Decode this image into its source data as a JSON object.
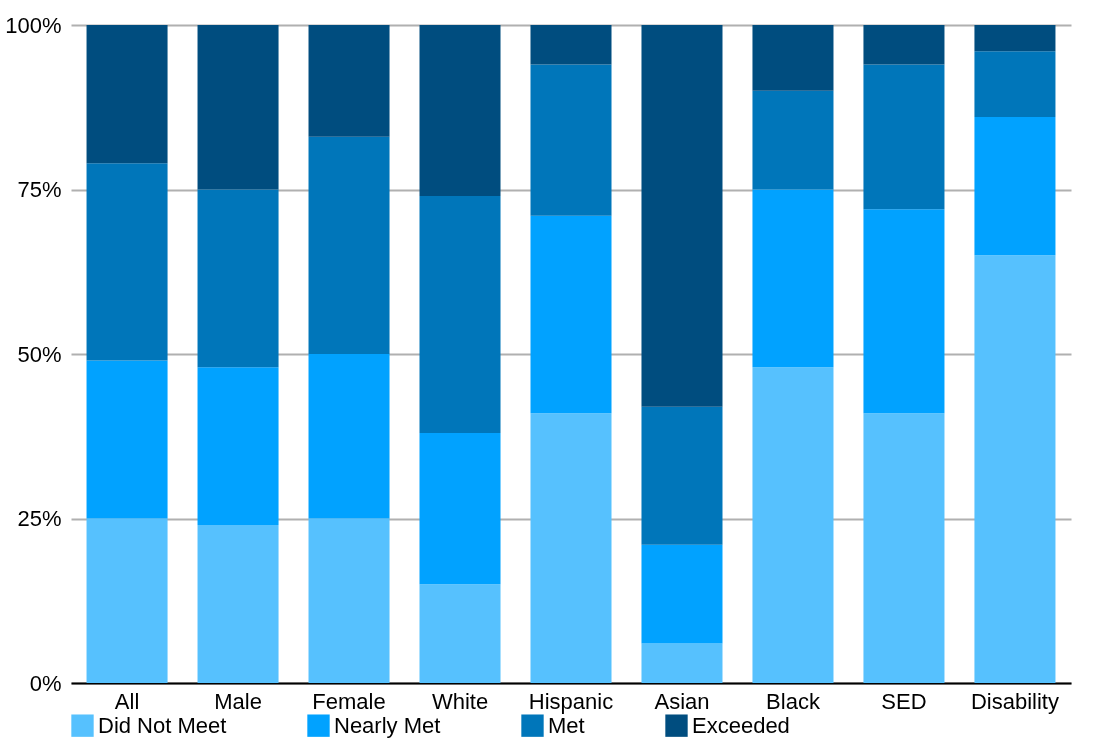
{
  "chart_data": {
    "type": "bar",
    "stacked": true,
    "categories": [
      "All",
      "Male",
      "Female",
      "White",
      "Hispanic",
      "Asian",
      "Black",
      "SED",
      "Disability"
    ],
    "series": [
      {
        "name": "Did Not Meet",
        "color": "#56c1fe",
        "values": [
          25,
          24,
          25,
          15,
          41,
          6,
          48,
          41,
          65
        ]
      },
      {
        "name": "Nearly Met",
        "color": "#01a2ff",
        "values": [
          24,
          24,
          25,
          23,
          30,
          15,
          27,
          31,
          21
        ]
      },
      {
        "name": "Met",
        "color": "#0076ba",
        "values": [
          30,
          27,
          33,
          36,
          23,
          21,
          15,
          22,
          10
        ]
      },
      {
        "name": "Exceeded",
        "color": "#004d7f",
        "values": [
          21,
          25,
          17,
          26,
          6,
          58,
          10,
          6,
          4
        ]
      }
    ],
    "ylim": [
      0,
      100
    ],
    "yticks": [
      {
        "value": 0,
        "label": "0%"
      },
      {
        "value": 25,
        "label": "25%"
      },
      {
        "value": 50,
        "label": "50%"
      },
      {
        "value": 75,
        "label": "75%"
      },
      {
        "value": 100,
        "label": "100%"
      }
    ],
    "grid": "y",
    "legend": "bottom"
  }
}
